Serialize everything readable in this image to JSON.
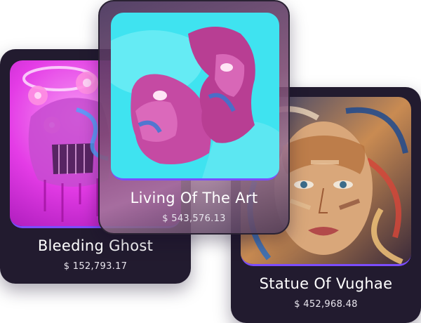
{
  "cards": [
    {
      "title": "Bleeding Ghost",
      "price": "$ 152,793.17"
    },
    {
      "title": "Living Of The Art",
      "price": "$ 543,576.13"
    },
    {
      "title": "Statue Of Vughae",
      "price": "$ 452,968.48"
    }
  ],
  "colors": {
    "card_bg": "#221b2f",
    "accent_border": "#7b4dff",
    "magenta_art": "#e43ce6",
    "cyan_art": "#3fe3f0"
  },
  "icons": [
    "ghost-art-image",
    "face-sculpture-art-image",
    "portrait-art-image"
  ]
}
